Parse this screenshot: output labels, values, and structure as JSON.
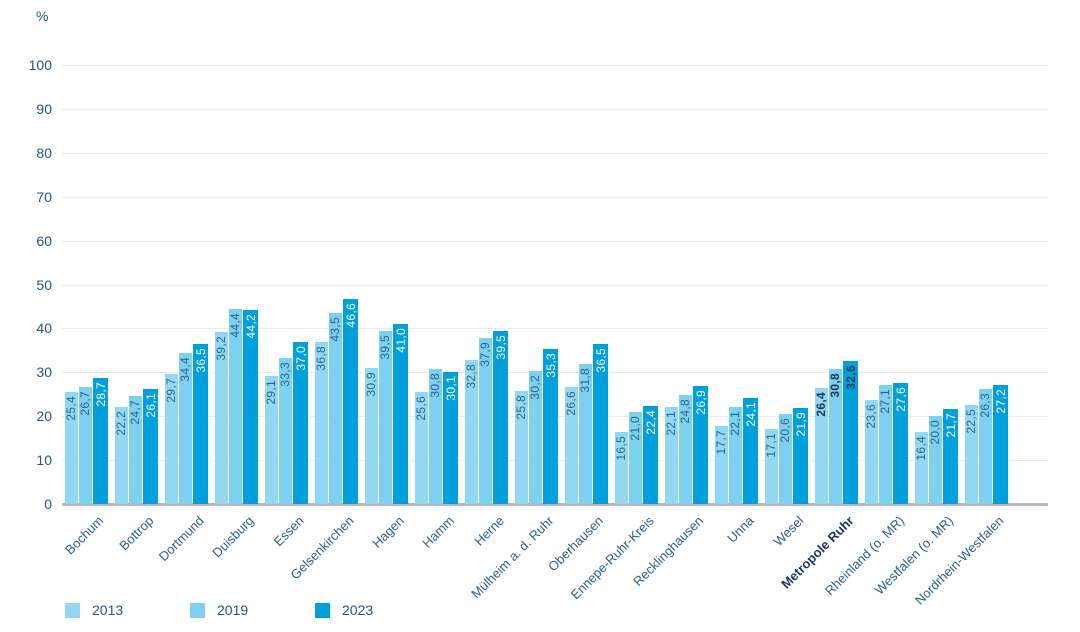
{
  "chart_data": {
    "type": "bar",
    "title": "",
    "ylabel": "%",
    "xlabel": "",
    "ylim": [
      0,
      100
    ],
    "ytick_step": 10,
    "grid": true,
    "legend_position": "bottom",
    "decimal_separator": ",",
    "categories": [
      "Bochum",
      "Bottrop",
      "Dortmund",
      "Duisburg",
      "Essen",
      "Gelsenkirchen",
      "Hagen",
      "Hamm",
      "Herne",
      "Mülheim a. d. Ruhr",
      "Oberhausen",
      "Ennepe-Ruhr-Kreis",
      "Recklinghausen",
      "Unna",
      "Wesel",
      "Metropole Ruhr",
      "Rheinland (o. MR)",
      "Westfalen (o. MR)",
      "Nordrhein-Westfalen"
    ],
    "emphasized_category": "Metropole Ruhr",
    "series": [
      {
        "name": "2013",
        "color": "#92d8f3",
        "values": [
          25.4,
          22.2,
          29.7,
          39.2,
          29.1,
          36.8,
          30.9,
          25.6,
          32.8,
          25.8,
          26.6,
          16.5,
          22.1,
          17.7,
          17.1,
          26.4,
          23.6,
          16.4,
          22.5
        ]
      },
      {
        "name": "2019",
        "color": "#7dd0ef",
        "values": [
          26.7,
          24.7,
          34.4,
          44.4,
          33.3,
          43.5,
          39.5,
          30.8,
          37.9,
          30.2,
          31.8,
          21.0,
          24.8,
          22.1,
          20.6,
          30.8,
          27.1,
          20.0,
          26.3
        ]
      },
      {
        "name": "2023",
        "color": "#00a0dc",
        "values": [
          28.7,
          26.1,
          36.5,
          44.2,
          37.0,
          46.6,
          41.0,
          30.1,
          39.5,
          35.3,
          36.5,
          22.4,
          26.9,
          24.1,
          21.9,
          32.6,
          27.6,
          21.7,
          27.2
        ]
      }
    ],
    "colors": {
      "value_label": "#2a6391",
      "value_label_on_dark": "#ffffff",
      "axis_text": "#24567d",
      "category_text": "#2c608a",
      "emphasis_text": "#17375e",
      "gridline": "#e9e9ee",
      "baseline": "#b3bac1"
    }
  }
}
